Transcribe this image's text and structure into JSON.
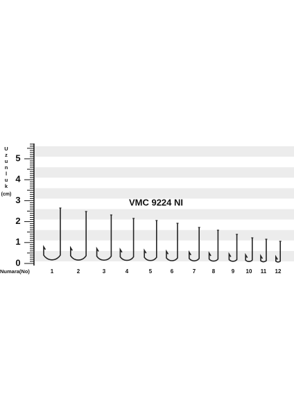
{
  "title": "VMC 9224 NI",
  "axis_label": {
    "letters": [
      "U",
      "z",
      "u",
      "n",
      "l",
      "u",
      "k"
    ],
    "unit": "(cm)"
  },
  "ruler_labels": [
    0,
    1,
    2,
    3,
    4,
    5
  ],
  "number_label": "Numara(No)",
  "hook_numbers": [
    "1",
    "2",
    "3",
    "4",
    "5",
    "6",
    "7",
    "8",
    "9",
    "10",
    "11",
    "12"
  ]
}
